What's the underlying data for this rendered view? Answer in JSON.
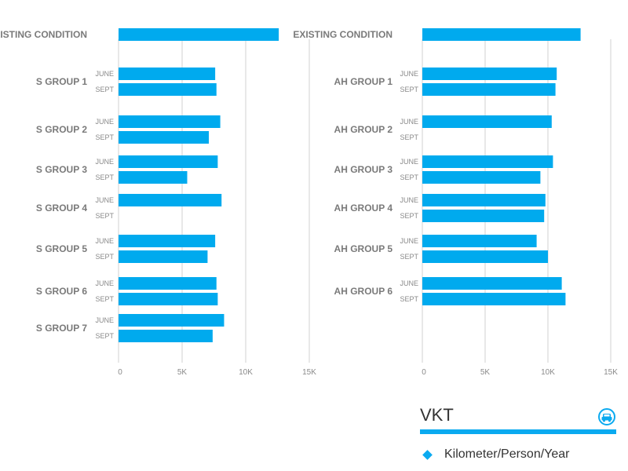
{
  "chart_data": [
    {
      "type": "bar",
      "orientation": "horizontal",
      "xlim": [
        0,
        15000
      ],
      "ticks": [
        "0",
        "5K",
        "10K",
        "15K"
      ],
      "tick_values": [
        0,
        5000,
        10000,
        15000
      ],
      "grid": "vertical",
      "groups": [
        {
          "label": "EXISTING CONDITION",
          "bars": [
            {
              "sub": "",
              "value": 12600
            }
          ]
        },
        {
          "label": "S GROUP 1",
          "bars": [
            {
              "sub": "JUNE",
              "value": 7600
            },
            {
              "sub": "SEPT",
              "value": 7700
            }
          ]
        },
        {
          "label": "S GROUP 2",
          "bars": [
            {
              "sub": "JUNE",
              "value": 8000
            },
            {
              "sub": "SEPT",
              "value": 7100
            }
          ]
        },
        {
          "label": "S GROUP 3",
          "bars": [
            {
              "sub": "JUNE",
              "value": 7800
            },
            {
              "sub": "SEPT",
              "value": 5400
            }
          ]
        },
        {
          "label": "S GROUP 4",
          "bars": [
            {
              "sub": "JUNE",
              "value": 8100
            },
            {
              "sub": "SEPT",
              "value": null
            }
          ]
        },
        {
          "label": "S GROUP 5",
          "bars": [
            {
              "sub": "JUNE",
              "value": 7600
            },
            {
              "sub": "SEPT",
              "value": 7000
            }
          ]
        },
        {
          "label": "S GROUP 6",
          "bars": [
            {
              "sub": "JUNE",
              "value": 7700
            },
            {
              "sub": "SEPT",
              "value": 7800
            }
          ]
        },
        {
          "label": "S GROUP 7",
          "bars": [
            {
              "sub": "JUNE",
              "value": 8300
            },
            {
              "sub": "SEPT",
              "value": 7400
            }
          ]
        }
      ]
    },
    {
      "type": "bar",
      "orientation": "horizontal",
      "xlim": [
        0,
        15000
      ],
      "ticks": [
        "0",
        "5K",
        "10K",
        "15K"
      ],
      "tick_values": [
        0,
        5000,
        10000,
        15000
      ],
      "grid": "vertical",
      "groups": [
        {
          "label": "EXISTING CONDITION",
          "bars": [
            {
              "sub": "",
              "value": 12600
            }
          ]
        },
        {
          "label": "AH GROUP 1",
          "bars": [
            {
              "sub": "JUNE",
              "value": 10700
            },
            {
              "sub": "SEPT",
              "value": 10600
            }
          ]
        },
        {
          "label": "AH GROUP 2",
          "bars": [
            {
              "sub": "JUNE",
              "value": 10300
            },
            {
              "sub": "SEPT",
              "value": null
            }
          ]
        },
        {
          "label": "AH GROUP 3",
          "bars": [
            {
              "sub": "JUNE",
              "value": 10400
            },
            {
              "sub": "SEPT",
              "value": 9400
            }
          ]
        },
        {
          "label": "AH GROUP 4",
          "bars": [
            {
              "sub": "JUNE",
              "value": 9800
            },
            {
              "sub": "SEPT",
              "value": 9700
            }
          ]
        },
        {
          "label": "AH GROUP 5",
          "bars": [
            {
              "sub": "JUNE",
              "value": 9100
            },
            {
              "sub": "SEPT",
              "value": 10000
            }
          ]
        },
        {
          "label": "AH GROUP 6",
          "bars": [
            {
              "sub": "JUNE",
              "value": 11100
            },
            {
              "sub": "SEPT",
              "value": 11400
            }
          ]
        }
      ]
    }
  ],
  "legend": {
    "title": "VKT",
    "unit": "Kilometer/Person/Year",
    "icon": "car-icon",
    "accent": "#0aaaf0"
  },
  "colors": {
    "bar": "#00aaee",
    "grid": "#d0d0d0"
  }
}
